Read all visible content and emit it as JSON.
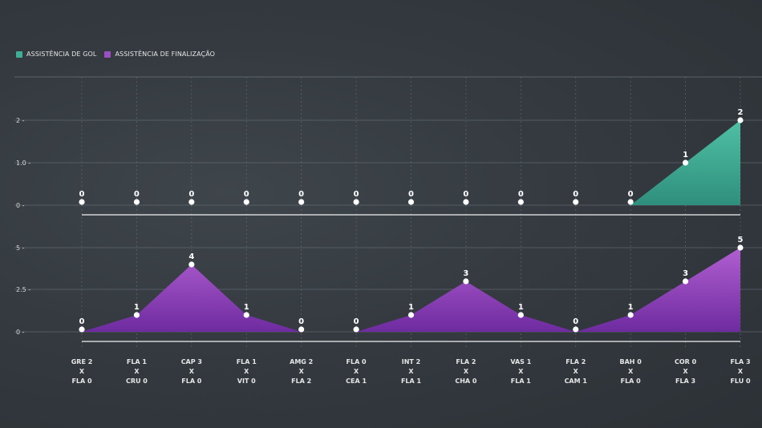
{
  "legend": [
    {
      "label": "ASSISTÊNCIA DE GOL",
      "color": "#3fae96"
    },
    {
      "label": "ASSISTÊNCIA DE FINALIZAÇÃO",
      "color": "#9b4fc4"
    }
  ],
  "chart_data": [
    {
      "type": "area",
      "categories": [
        [
          "GRE 2",
          "X",
          "FLA 0"
        ],
        [
          "FLA 1",
          "X",
          "CRU 0"
        ],
        [
          "CAP 3",
          "X",
          "FLA 0"
        ],
        [
          "FLA 1",
          "X",
          "VIT 0"
        ],
        [
          "AMG 2",
          "X",
          "FLA 2"
        ],
        [
          "FLA 0",
          "X",
          "CEA 1"
        ],
        [
          "INT 2",
          "X",
          "FLA 1"
        ],
        [
          "FLA 2",
          "X",
          "CHA 0"
        ],
        [
          "VAS 1",
          "X",
          "FLA 1"
        ],
        [
          "FLA 2",
          "X",
          "CAM 1"
        ],
        [
          "BAH 0",
          "X",
          "FLA 0"
        ],
        [
          "COR 0",
          "X",
          "FLA 3"
        ],
        [
          "FLA 3",
          "X",
          "FLU 0"
        ]
      ],
      "series": [
        {
          "name": "ASSISTÊNCIA DE GOL",
          "color": "#3fae96",
          "values": [
            0,
            0,
            0,
            0,
            0,
            0,
            0,
            0,
            0,
            0,
            0,
            1,
            2
          ]
        }
      ],
      "y_ticks": [
        "0 -",
        "1.0 -",
        "2 -"
      ],
      "ylim": [
        0,
        2
      ],
      "grid": true
    },
    {
      "type": "area",
      "series": [
        {
          "name": "ASSISTÊNCIA DE FINALIZAÇÃO",
          "color": "#9b4fc4",
          "values": [
            0,
            1,
            4,
            1,
            0,
            0,
            1,
            3,
            1,
            0,
            1,
            3,
            5
          ]
        }
      ],
      "y_ticks": [
        "0 -",
        "2.5 -",
        "5 -"
      ],
      "ylim": [
        0,
        5
      ],
      "grid": true
    }
  ]
}
